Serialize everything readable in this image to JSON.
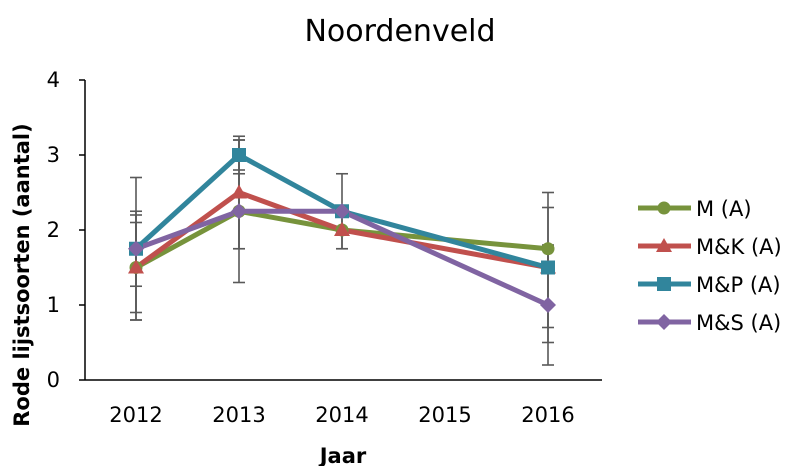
{
  "chart_data": {
    "type": "line",
    "title": "Noordenveld",
    "xlabel": "Jaar",
    "ylabel": "Rode lijstsoorten (aantal)",
    "categories": [
      "2012",
      "2013",
      "2014",
      "2015",
      "2016"
    ],
    "x_ticks": [
      "2012",
      "2013",
      "2014",
      "2015",
      "2016"
    ],
    "y_ticks": [
      "0",
      "1",
      "2",
      "3",
      "4"
    ],
    "ylim": [
      0,
      4
    ],
    "grid": false,
    "legend_position": "right",
    "series": [
      {
        "name": "M (A)",
        "color": "#77933c",
        "marker": "circle",
        "points": [
          [
            2012,
            1.5
          ],
          [
            2013,
            2.25
          ],
          [
            2014,
            2.0
          ],
          [
            2016,
            1.75
          ]
        ],
        "errors": [
          0.7,
          0.95,
          0.0,
          0.0
        ]
      },
      {
        "name": "M&K (A)",
        "color": "#c0504d",
        "marker": "triangle",
        "points": [
          [
            2012,
            1.5
          ],
          [
            2013,
            2.5
          ],
          [
            2014,
            2.0
          ],
          [
            2016,
            1.5
          ]
        ],
        "errors": [
          0.6,
          0.75,
          0.25,
          0.8
        ]
      },
      {
        "name": "M&P (A)",
        "color": "#31859c",
        "marker": "square",
        "points": [
          [
            2012,
            1.75
          ],
          [
            2013,
            3.0
          ],
          [
            2014,
            2.25
          ],
          [
            2016,
            1.5
          ]
        ],
        "errors": [
          0.95,
          0.2,
          0.0,
          1.0
        ]
      },
      {
        "name": "M&S (A)",
        "color": "#8064a2",
        "marker": "diamond",
        "points": [
          [
            2012,
            1.75
          ],
          [
            2013,
            2.25
          ],
          [
            2014,
            2.25
          ],
          [
            2016,
            1.0
          ]
        ],
        "errors": [
          0.5,
          0.5,
          0.5,
          0.8
        ]
      }
    ]
  }
}
